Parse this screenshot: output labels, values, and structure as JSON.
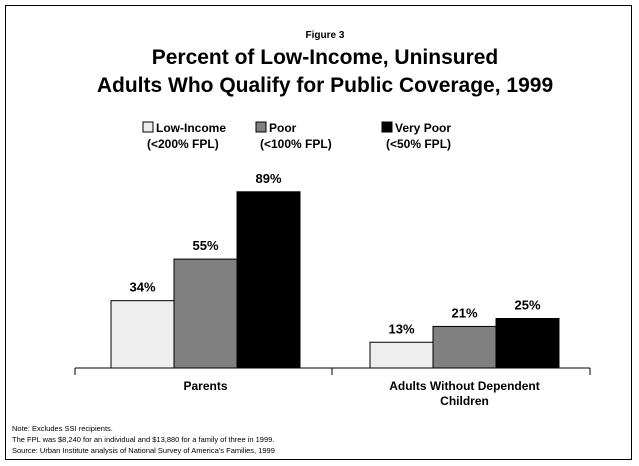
{
  "figure_label": "Figure 3",
  "title_lines": [
    "Percent of Low-Income,  Uninsured",
    "Adults Who Qualify for Public Coverage, 1999"
  ],
  "legend": [
    {
      "name": "Low-Income",
      "sub": "(<200% FPL)",
      "color": "#eeeeee"
    },
    {
      "name": "Poor",
      "sub": "(<100% FPL)",
      "color": "#808080"
    },
    {
      "name": "Very Poor",
      "sub": "(<50% FPL)",
      "color": "#000000"
    }
  ],
  "chart_data": {
    "type": "bar",
    "categories": [
      {
        "lines": [
          "Parents"
        ]
      },
      {
        "lines": [
          "Adults Without Dependent",
          "Children"
        ]
      }
    ],
    "series": [
      {
        "name": "Low-Income",
        "values": [
          34,
          13
        ],
        "labels": [
          "34%",
          "13%"
        ],
        "color": "#eeeeee"
      },
      {
        "name": "Poor",
        "values": [
          55,
          21
        ],
        "labels": [
          "55%",
          "21%"
        ],
        "color": "#808080"
      },
      {
        "name": "Very Poor",
        "values": [
          89,
          25
        ],
        "labels": [
          "89%",
          "25%"
        ],
        "color": "#000000"
      }
    ],
    "ylim": [
      0,
      100
    ],
    "grid": false,
    "legend_position": "top"
  },
  "notes": [
    "Note: Excludes SSI recipients.",
    "The FPL was  $8,240 for an individual and $13,880 for a family of three in 1999.",
    "Source: Urban Institute analysis of National Survey of America’s Families, 1999"
  ]
}
